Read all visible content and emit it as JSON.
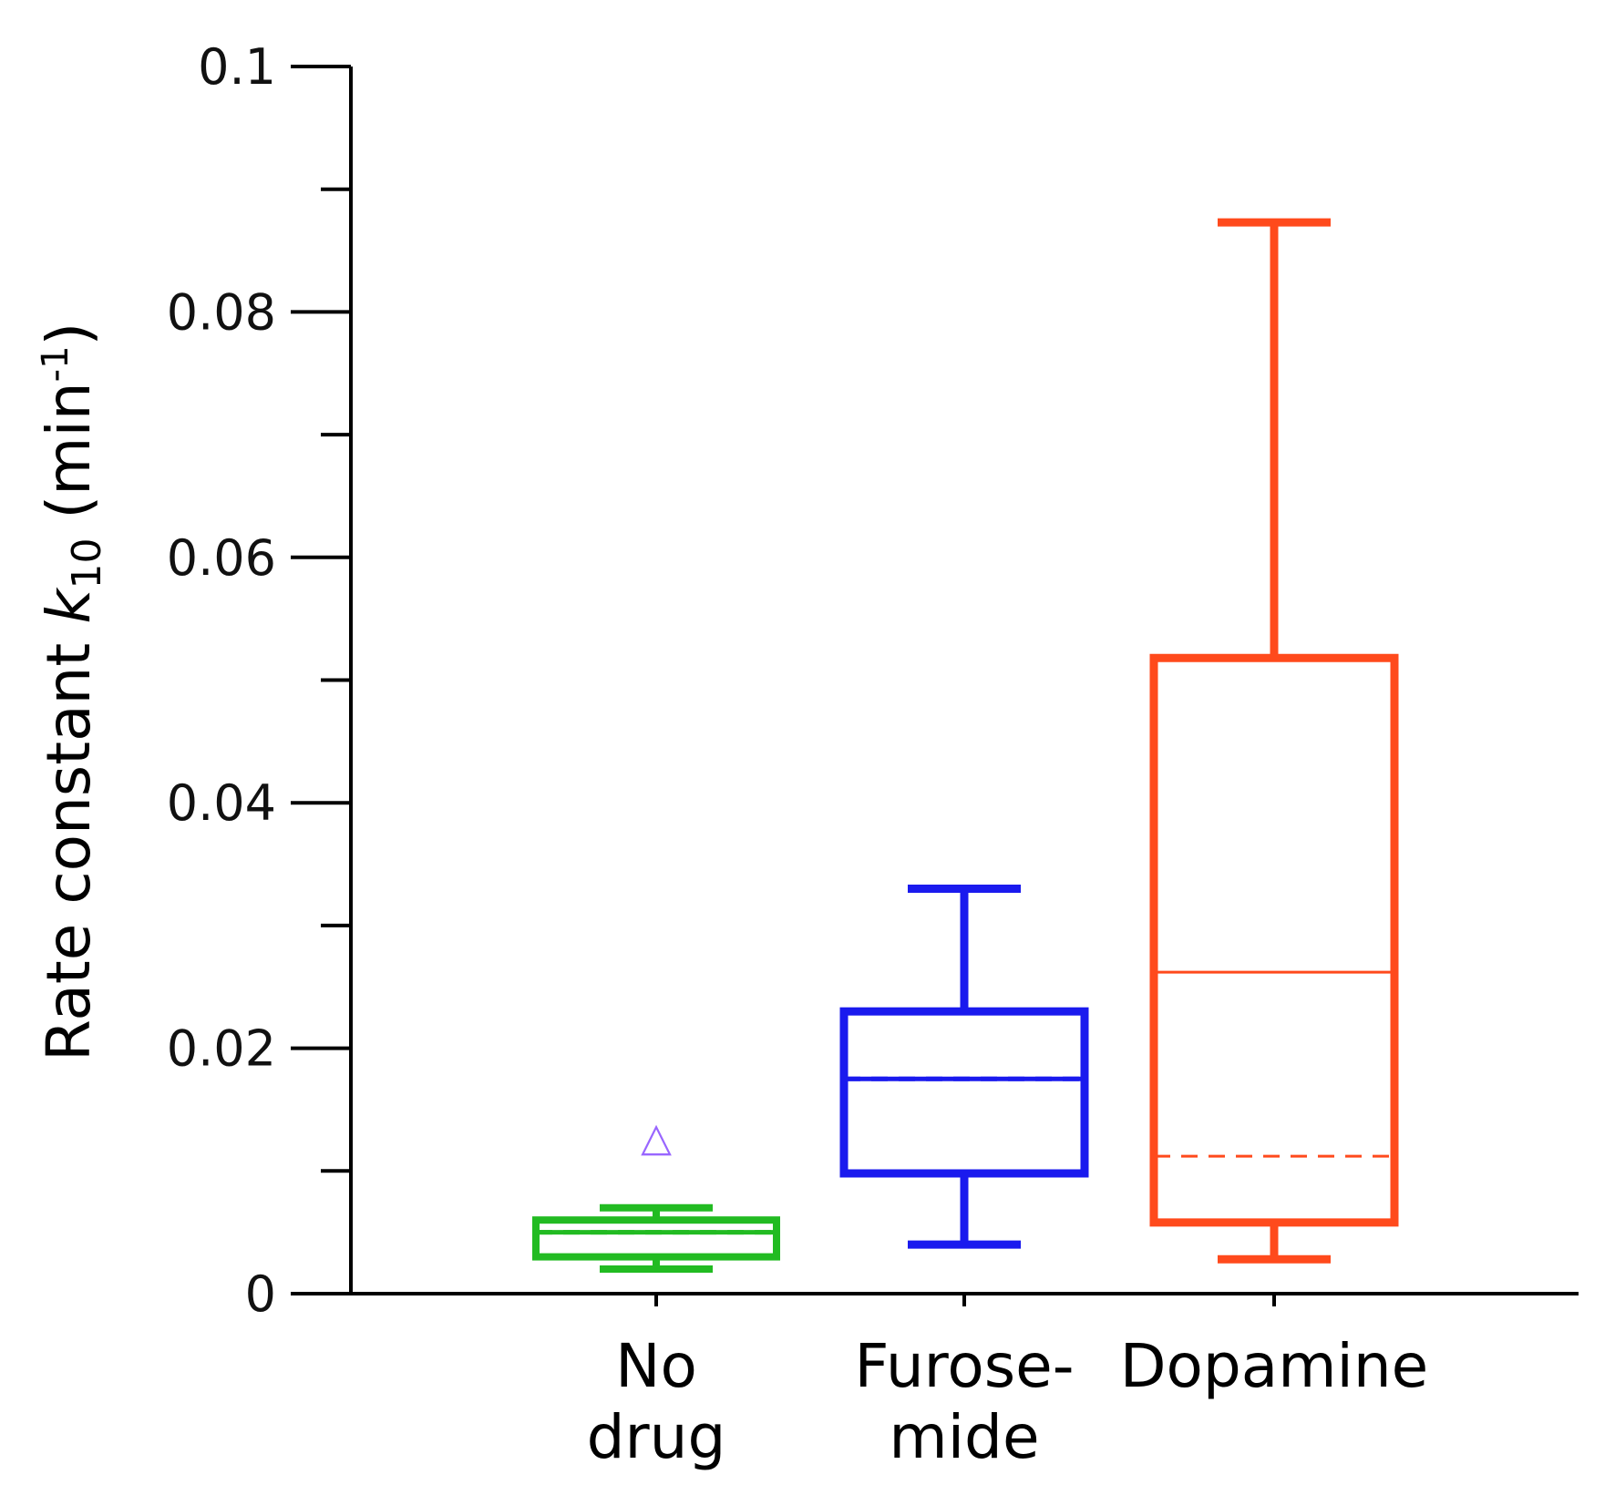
{
  "chart_data": {
    "type": "box",
    "title": "",
    "xlabel": "",
    "ylabel": {
      "prefix": "Rate constant ",
      "symbol": "k",
      "subscript": "10",
      "units_open": " (min",
      "units_sup": "-1",
      "units_close": ")"
    },
    "ylim": [
      0,
      0.1
    ],
    "yticks_major": [
      0,
      0.02,
      0.04,
      0.06,
      0.08,
      0.1
    ],
    "ytick_labels": [
      "0",
      "0.02",
      "0.04",
      "0.06",
      "0.08",
      "0.1"
    ],
    "yticks_minor": [
      0.01,
      0.03,
      0.05,
      0.07,
      0.09
    ],
    "categories": [
      {
        "line1": "No",
        "line2": "drug"
      },
      {
        "line1": "Furose-",
        "line2": "mide"
      },
      {
        "line1": "Dopamine",
        "line2": ""
      }
    ],
    "boxes": [
      {
        "name": "No drug",
        "color": "#22bb22",
        "whisker_low": 0.002,
        "q1": 0.003,
        "median": 0.005,
        "mean": 0.005,
        "q3": 0.006,
        "whisker_high": 0.007,
        "outliers": [
          0.013
        ],
        "outlier_color": "#9966ff",
        "outlier_marker": "△"
      },
      {
        "name": "Furosemide",
        "color": "#1a1aee",
        "whisker_low": 0.004,
        "q1": 0.0098,
        "median": 0.0175,
        "mean": 0.0175,
        "q3": 0.023,
        "whisker_high": 0.033,
        "outliers": []
      },
      {
        "name": "Dopamine",
        "color": "#ff4a1c",
        "whisker_low": 0.0028,
        "q1": 0.0058,
        "median": 0.0262,
        "mean": 0.0112,
        "q3": 0.0518,
        "whisker_high": 0.0873,
        "outliers": []
      }
    ],
    "legend": "none",
    "grid": false
  }
}
